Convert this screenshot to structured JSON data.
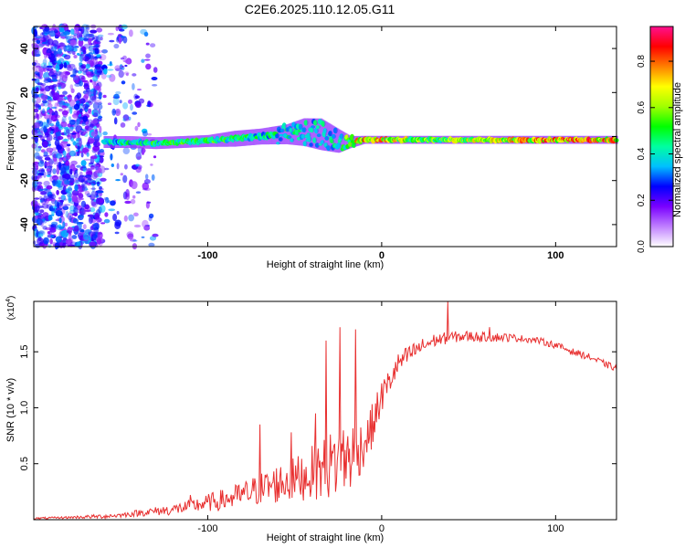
{
  "title": "C2E6.2025.110.12.05.G11",
  "chart_data": [
    {
      "type": "heatmap",
      "xlabel": "Height of straight line (km)",
      "ylabel": "Frequency (Hz)",
      "xlim": [
        -200,
        135
      ],
      "ylim": [
        -50,
        50
      ],
      "x_ticks": [
        -100,
        0,
        100
      ],
      "x_tick_labels": [
        "-100",
        "0",
        "100"
      ],
      "y_ticks": [
        -40,
        -20,
        0,
        20,
        40
      ],
      "y_tick_labels": [
        "-40",
        "-20",
        "0",
        "20",
        "40"
      ],
      "colorbar": {
        "label": "Normalized spectral amplitude",
        "range": [
          0,
          0.95
        ],
        "ticks": [
          0.0,
          0.2,
          0.4,
          0.6,
          0.8
        ],
        "tick_labels": [
          "0.0",
          "0.2",
          "0.4",
          "0.6",
          "0.8"
        ],
        "colormap": [
          "#ffffff",
          "#c080ff",
          "#7a00ff",
          "#0000ff",
          "#00c0ff",
          "#00ffa0",
          "#00ff00",
          "#a0ff00",
          "#ffff00",
          "#ff8000",
          "#ff0000",
          "#ff1090"
        ]
      },
      "band": [
        {
          "x": -158,
          "center": -2.5,
          "width": 3,
          "amp": 0.45
        },
        {
          "x": -145,
          "center": -2.5,
          "width": 3,
          "amp": 0.5
        },
        {
          "x": -130,
          "center": -3.0,
          "width": 3,
          "amp": 0.55
        },
        {
          "x": -115,
          "center": -2.5,
          "width": 3,
          "amp": 0.6
        },
        {
          "x": -100,
          "center": -2.0,
          "width": 3,
          "amp": 0.6
        },
        {
          "x": -85,
          "center": -1.0,
          "width": 4,
          "amp": 0.55
        },
        {
          "x": -70,
          "center": 0.0,
          "width": 4,
          "amp": 0.5
        },
        {
          "x": -55,
          "center": 1.0,
          "width": 5,
          "amp": 0.5
        },
        {
          "x": -45,
          "center": 2.0,
          "width": 7,
          "amp": 0.45
        },
        {
          "x": -35,
          "center": 1.0,
          "width": 8,
          "amp": 0.45
        },
        {
          "x": -25,
          "center": -2.0,
          "width": 6,
          "amp": 0.5
        },
        {
          "x": -18,
          "center": -2.5,
          "width": 3,
          "amp": 0.75
        },
        {
          "x": -10,
          "center": -1.5,
          "width": 2,
          "amp": 0.85
        },
        {
          "x": 0,
          "center": -1.5,
          "width": 2,
          "amp": 0.8
        },
        {
          "x": 15,
          "center": -1.5,
          "width": 2,
          "amp": 0.7
        },
        {
          "x": 30,
          "center": -1.5,
          "width": 2,
          "amp": 0.65
        },
        {
          "x": 45,
          "center": -1.5,
          "width": 2,
          "amp": 0.7
        },
        {
          "x": 60,
          "center": -1.5,
          "width": 2,
          "amp": 0.75
        },
        {
          "x": 75,
          "center": -1.5,
          "width": 2,
          "amp": 0.8
        },
        {
          "x": 90,
          "center": -1.5,
          "width": 2,
          "amp": 0.85
        },
        {
          "x": 105,
          "center": -1.5,
          "width": 2,
          "amp": 0.9
        },
        {
          "x": 120,
          "center": -1.5,
          "width": 2,
          "amp": 0.9
        },
        {
          "x": 135,
          "center": -1.5,
          "width": 2,
          "amp": 0.85
        }
      ],
      "noise_region_x": [
        -200,
        -130
      ]
    },
    {
      "type": "line",
      "xlabel": "Height of straight line (km)",
      "ylabel": "SNR (10 * v/v)",
      "y_multiplier_label": "(x10",
      "y_multiplier_exp": "4",
      "y_multiplier_close": ")",
      "xlim": [
        -200,
        135
      ],
      "ylim": [
        0,
        1.95
      ],
      "x_ticks": [
        -100,
        0,
        100
      ],
      "x_tick_labels": [
        "-100",
        "0",
        "100"
      ],
      "y_ticks": [
        0.5,
        1.0,
        1.5
      ],
      "y_tick_labels": [
        "0.5",
        "1.0",
        "1.5"
      ],
      "series": [
        {
          "color": "#e83030",
          "envelope": {
            "x": [
              -200,
              -180,
              -160,
              -150,
              -140,
              -120,
              -110,
              -100,
              -90,
              -80,
              -70,
              -60,
              -50,
              -40,
              -30,
              -25,
              -20,
              -15,
              -10,
              -5,
              0,
              5,
              10,
              20,
              30,
              40,
              50,
              60,
              70,
              80,
              90,
              100,
              110,
              120,
              130,
              135
            ],
            "y": [
              0.01,
              0.02,
              0.03,
              0.04,
              0.06,
              0.09,
              0.12,
              0.15,
              0.18,
              0.22,
              0.27,
              0.32,
              0.36,
              0.42,
              0.48,
              0.52,
              0.55,
              0.6,
              0.68,
              0.85,
              1.1,
              1.25,
              1.4,
              1.52,
              1.6,
              1.63,
              1.64,
              1.63,
              1.63,
              1.62,
              1.6,
              1.56,
              1.5,
              1.45,
              1.38,
              1.35
            ],
            "spread": [
              0.01,
              0.01,
              0.02,
              0.02,
              0.03,
              0.05,
              0.06,
              0.08,
              0.1,
              0.12,
              0.15,
              0.18,
              0.2,
              0.24,
              0.3,
              0.35,
              0.35,
              0.3,
              0.2,
              0.2,
              0.15,
              0.12,
              0.1,
              0.08,
              0.06,
              0.05,
              0.05,
              0.04,
              0.04,
              0.03,
              0.03,
              0.03,
              0.03,
              0.03,
              0.03,
              0.03
            ]
          },
          "spikes": [
            {
              "x": -110,
              "y": 0.22
            },
            {
              "x": -70,
              "y": 0.85
            },
            {
              "x": -52,
              "y": 0.78
            },
            {
              "x": -38,
              "y": 0.95
            },
            {
              "x": -32,
              "y": 1.6
            },
            {
              "x": -24,
              "y": 1.72
            },
            {
              "x": -15,
              "y": 1.7
            },
            {
              "x": 38,
              "y": 1.95
            },
            {
              "x": 62,
              "y": 1.72
            }
          ]
        }
      ]
    }
  ]
}
